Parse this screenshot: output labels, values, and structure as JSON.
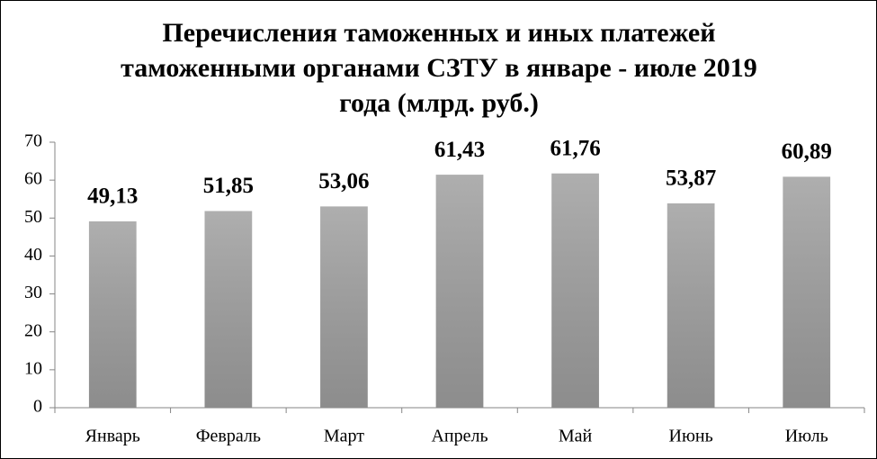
{
  "chart_data": {
    "type": "bar",
    "title": "Перечисления таможенных и иных платежей таможенными органами СЗТУ в январе - июле 2019 года (млрд. руб.)",
    "categories": [
      "Январь",
      "Февраль",
      "Март",
      "Апрель",
      "Май",
      "Июнь",
      "Июль"
    ],
    "values": [
      49.13,
      51.85,
      53.06,
      61.43,
      61.76,
      53.87,
      60.89
    ],
    "value_labels": [
      "49,13",
      "51,85",
      "53,06",
      "61,43",
      "61,76",
      "53,87",
      "60,89"
    ],
    "color": "#a0a0a0",
    "ylim": [
      0,
      70
    ],
    "yticks": [
      0,
      10,
      20,
      30,
      40,
      50,
      60,
      70
    ],
    "grid": false
  }
}
